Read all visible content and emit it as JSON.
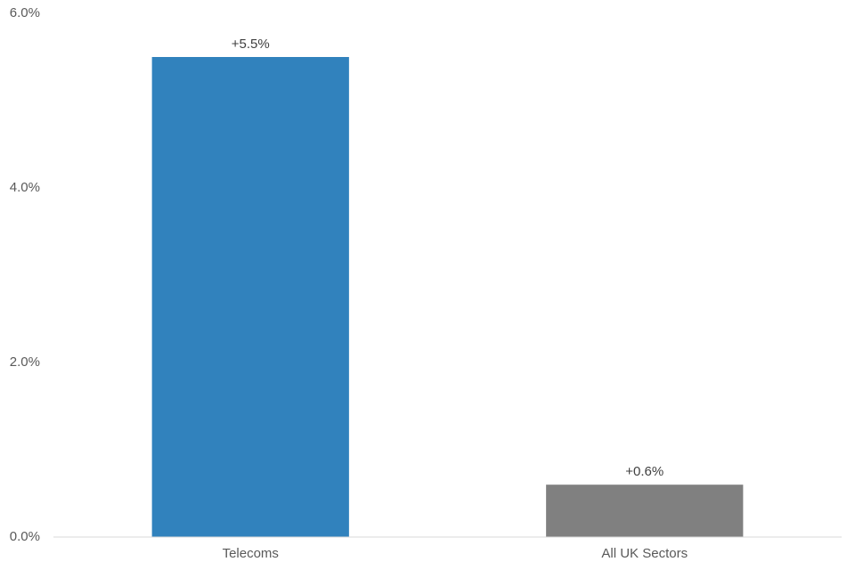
{
  "chart_data": {
    "type": "bar",
    "categories": [
      "Telecoms",
      "All UK Sectors"
    ],
    "values": [
      5.5,
      0.6
    ],
    "value_labels": [
      "+5.5%",
      "+0.6%"
    ],
    "colors": [
      "#3182bd",
      "#808080"
    ],
    "ylim": [
      0,
      6
    ],
    "yticks": [
      {
        "value": 0,
        "label": "0.0%"
      },
      {
        "value": 2,
        "label": "2.0%"
      },
      {
        "value": 4,
        "label": "4.0%"
      },
      {
        "value": 6,
        "label": "6.0%"
      }
    ],
    "grid": false
  }
}
